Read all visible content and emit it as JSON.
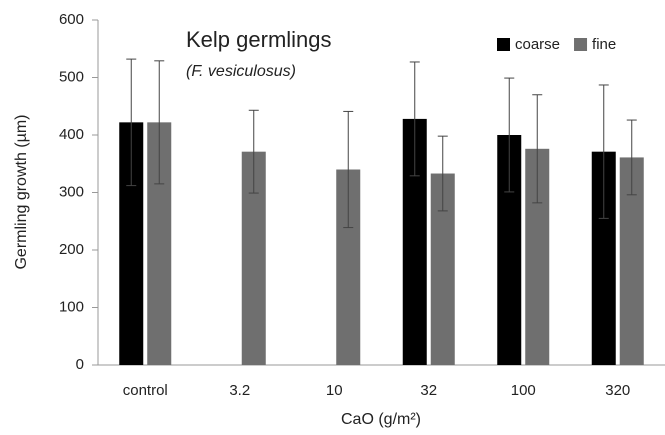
{
  "chart_data": {
    "type": "bar",
    "title": "Kelp germlings",
    "subtitle": "(F. vesiculosus)",
    "x_label": "CaO (g/m²)",
    "y_label": "Germling growth (µm)",
    "categories": [
      "control",
      "3.2",
      "10",
      "32",
      "100",
      "320"
    ],
    "series": [
      {
        "name": "coarse",
        "color": "#000000",
        "values": [
          422,
          null,
          null,
          428,
          400,
          371
        ],
        "errors": [
          110,
          null,
          null,
          99,
          99,
          116
        ]
      },
      {
        "name": "fine",
        "color": "#6f6f6f",
        "values": [
          422,
          371,
          340,
          333,
          376,
          361
        ],
        "errors": [
          107,
          72,
          101,
          65,
          94,
          65
        ]
      }
    ],
    "ylim": [
      0,
      600
    ],
    "yticks": [
      0,
      100,
      200,
      300,
      400,
      500,
      600
    ],
    "grid": false,
    "legend": "top-right"
  }
}
